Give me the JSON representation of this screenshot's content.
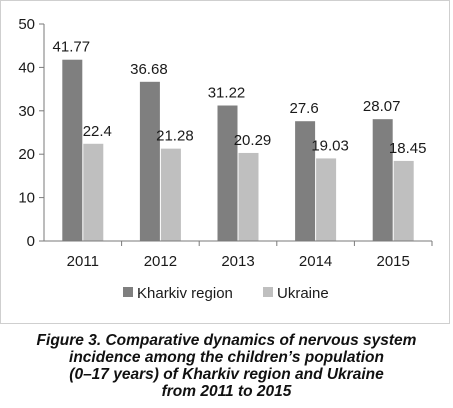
{
  "chart_data": {
    "type": "bar",
    "categories": [
      "2011",
      "2012",
      "2013",
      "2014",
      "2015"
    ],
    "series": [
      {
        "name": "Kharkiv region",
        "values": [
          41.77,
          36.68,
          31.22,
          27.6,
          28.07
        ],
        "color": "#7f7f7f"
      },
      {
        "name": "Ukraine",
        "values": [
          22.4,
          21.28,
          20.29,
          19.03,
          18.45
        ],
        "color": "#bfbfbf"
      }
    ],
    "value_labels": [
      [
        "41.77",
        "36.68",
        "31.22",
        "27.6",
        "28.07"
      ],
      [
        "22.4",
        "21.28",
        "20.29",
        "19.03",
        "18.45"
      ]
    ],
    "yticks": [
      "0",
      "10",
      "20",
      "30",
      "40",
      "50"
    ],
    "ylim": [
      0,
      50
    ],
    "grid": false,
    "legend_position": "bottom",
    "title": "",
    "xlabel": "",
    "ylabel": ""
  },
  "caption": {
    "lines": [
      "Figure 3. Comparative dynamics of nervous system",
      "incidence among the children’s population",
      "(0–17 years) of Kharkiv region and Ukraine",
      "from 2011 to 2015"
    ]
  }
}
